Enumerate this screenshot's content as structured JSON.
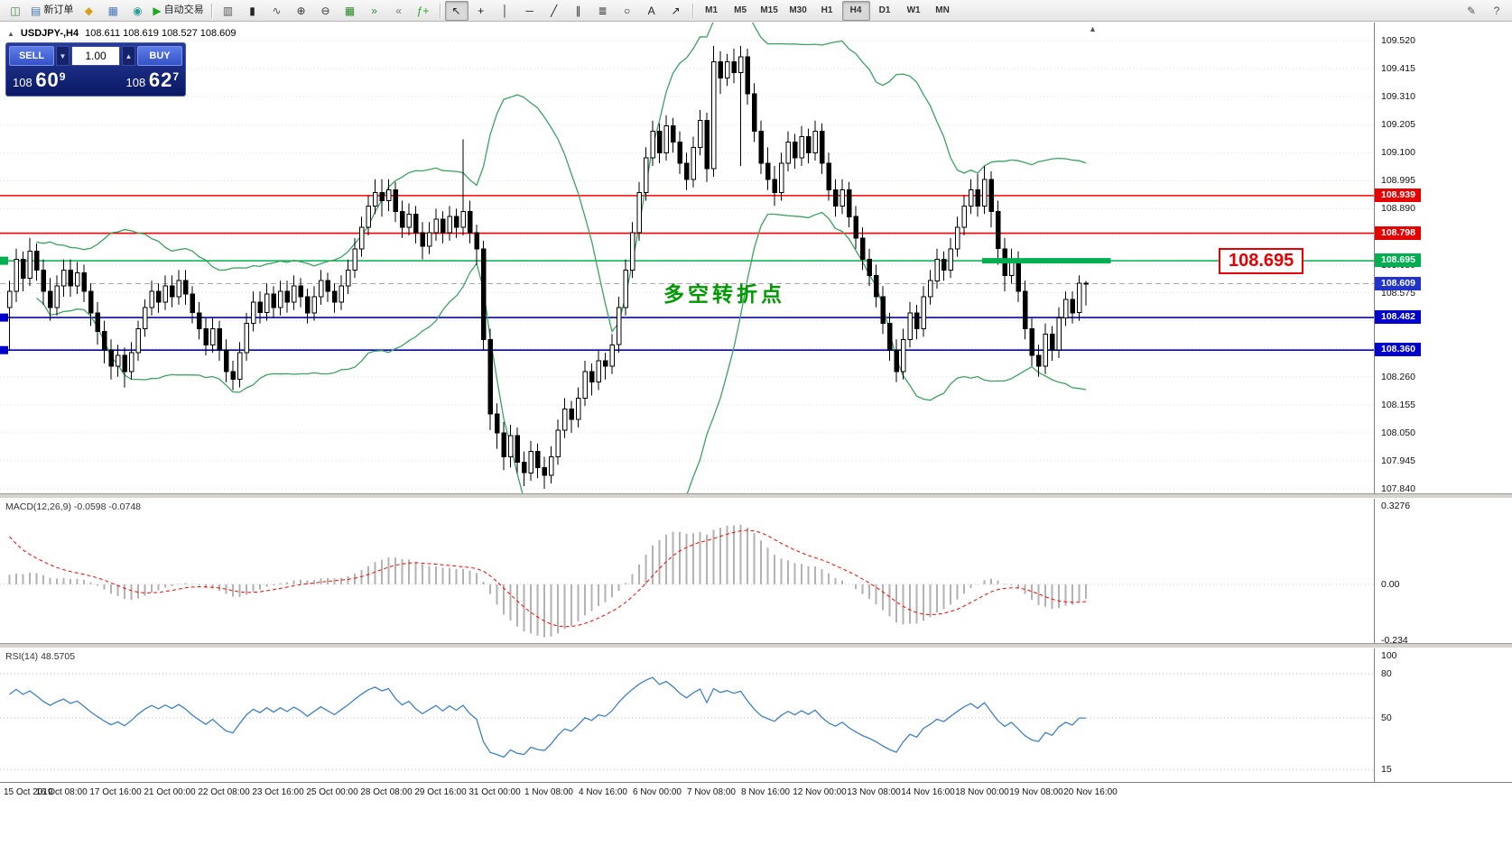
{
  "toolbar": {
    "groups": [
      [
        {
          "name": "new-chart-icon",
          "glyph": "◫",
          "color": "#3f7f3f"
        },
        {
          "name": "new-order-button",
          "icon_name": "new-order-icon",
          "glyph": "▤",
          "icon_color": "#4a7ab0",
          "label": "新订单"
        },
        {
          "name": "profiles-icon",
          "glyph": "◆",
          "color": "#d8a018"
        },
        {
          "name": "market-watch-icon",
          "glyph": "▦",
          "color": "#4a78b8"
        },
        {
          "name": "navigator-icon",
          "glyph": "◉",
          "color": "#2a9a9a"
        },
        {
          "name": "auto-trading-button",
          "icon_name": "auto-trading-icon",
          "glyph": "▶",
          "icon_color": "#1fa81f",
          "label": "自动交易"
        }
      ],
      [
        {
          "name": "bar-chart-icon",
          "glyph": "▥",
          "color": "#555555"
        },
        {
          "name": "candlestick-chart-icon",
          "glyph": "▮",
          "color": "#222222"
        },
        {
          "name": "line-chart-icon",
          "glyph": "∿",
          "color": "#555555"
        },
        {
          "name": "zoom-in-icon",
          "glyph": "⊕",
          "color": "#333333"
        },
        {
          "name": "zoom-out-icon",
          "glyph": "⊖",
          "color": "#333333"
        },
        {
          "name": "tile-windows-icon",
          "glyph": "▦",
          "color": "#2a8a2a"
        },
        {
          "name": "auto-scroll-icon",
          "glyph": "»",
          "color": "#2a8a2a"
        },
        {
          "name": "chart-shift-icon",
          "glyph": "«",
          "color": "#777777"
        },
        {
          "name": "indicators-icon",
          "glyph": "ƒ+",
          "color": "#1fa81f"
        }
      ],
      [
        {
          "name": "cursor-icon",
          "glyph": "↖",
          "color": "#222222",
          "active": true
        },
        {
          "name": "crosshair-icon",
          "glyph": "+",
          "color": "#222222"
        },
        {
          "name": "vertical-line-icon",
          "glyph": "│",
          "color": "#222222"
        },
        {
          "name": "horizontal-line-icon",
          "glyph": "─",
          "color": "#222222"
        },
        {
          "name": "trendline-icon",
          "glyph": "╱",
          "color": "#222222"
        },
        {
          "name": "channel-icon",
          "glyph": "∥",
          "color": "#222222"
        },
        {
          "name": "fibonacci-icon",
          "glyph": "≣",
          "color": "#222222"
        },
        {
          "name": "shapes-icon",
          "glyph": "○",
          "color": "#222222"
        },
        {
          "name": "text-icon",
          "glyph": "A",
          "color": "#222222"
        },
        {
          "name": "arrow-objects-icon",
          "glyph": "↗",
          "color": "#222222"
        }
      ]
    ],
    "timeframes": [
      "M1",
      "M5",
      "M15",
      "M30",
      "H1",
      "H4",
      "D1",
      "W1",
      "MN"
    ],
    "active_timeframe": "H4",
    "right_items": [
      {
        "name": "pencil-icon",
        "glyph": "✎",
        "color": "#555555"
      },
      {
        "name": "help-icon",
        "glyph": "?",
        "color": "#555555"
      }
    ]
  },
  "chart": {
    "header": {
      "collapse_icon": "▲",
      "symbol": "USDJPY-,H4",
      "ohlc": "108.611 108.619 108.527 108.609"
    },
    "trade_panel": {
      "sell_label": "SELL",
      "buy_label": "BUY",
      "volume": "1.00",
      "spinner_down": "▼",
      "spinner_up": "▲",
      "sell_price": {
        "prefix": "108 ",
        "big": "60",
        "sup": "9"
      },
      "buy_price": {
        "prefix": "108 ",
        "big": "62",
        "sup": "7"
      }
    },
    "annotation_text": "多空转折点",
    "price_flag": "108.695",
    "scroll_marker": "▲",
    "y_axis": {
      "min": 107.84,
      "max": 109.52,
      "step": 0.105
    },
    "levels": {
      "resistance": [
        108.939,
        108.798
      ],
      "pivot": 108.695,
      "support": [
        108.482,
        108.36
      ],
      "bid": 108.609
    },
    "highlight": {
      "price": 108.695,
      "from_bar": 144,
      "to_bar": 163
    },
    "left_stubs": [
      {
        "price": 108.695,
        "color": "#00b050"
      },
      {
        "price": 108.482,
        "color": "#0000cc"
      },
      {
        "price": 108.36,
        "color": "#0000cc"
      }
    ],
    "price_tags": [
      {
        "text": "108.939",
        "bg": "#e60000"
      },
      {
        "text": "108.798",
        "bg": "#e60000"
      },
      {
        "text": "108.695",
        "bg": "#00b050"
      },
      {
        "text": "108.609",
        "bg": "#2233cc"
      },
      {
        "text": "108.482",
        "bg": "#0000cc"
      },
      {
        "text": "108.360",
        "bg": "#0000cc"
      }
    ],
    "colors": {
      "bull": "#ffffff",
      "bear": "#000000",
      "wick": "#000000",
      "bollinger": "#3aa35f",
      "resistance": "#ff0000",
      "support": "#0000dd",
      "pivot": "#00b050",
      "bid_line": "#a8a8b8",
      "grid": "#e0e0e0",
      "macd_histogram": "#b2b2b2",
      "macd_signal": "#ff0000",
      "rsi_line": "#4080c8"
    }
  },
  "chart_data": {
    "type": "candlestick",
    "symbol": "USDJPY",
    "timeframe": "H4",
    "title": "USDJPY-,H4",
    "candles": [
      [
        108.52,
        108.62,
        108.36,
        108.58
      ],
      [
        108.58,
        108.74,
        108.54,
        108.7
      ],
      [
        108.7,
        108.73,
        108.58,
        108.63
      ],
      [
        108.63,
        108.78,
        108.6,
        108.73
      ],
      [
        108.73,
        108.76,
        108.62,
        108.66
      ],
      [
        108.66,
        108.7,
        108.53,
        108.58
      ],
      [
        108.58,
        108.63,
        108.47,
        108.52
      ],
      [
        108.52,
        108.64,
        108.49,
        108.6
      ],
      [
        108.6,
        108.7,
        108.56,
        108.66
      ],
      [
        108.66,
        108.7,
        108.56,
        108.6
      ],
      [
        108.6,
        108.69,
        108.57,
        108.65
      ],
      [
        108.65,
        108.68,
        108.54,
        108.58
      ],
      [
        108.58,
        108.61,
        108.45,
        108.5
      ],
      [
        108.5,
        108.54,
        108.38,
        108.43
      ],
      [
        108.43,
        108.47,
        108.31,
        108.36
      ],
      [
        108.36,
        108.4,
        108.25,
        108.3
      ],
      [
        108.3,
        108.38,
        108.26,
        108.34
      ],
      [
        108.34,
        108.37,
        108.22,
        108.28
      ],
      [
        108.28,
        108.39,
        108.25,
        108.35
      ],
      [
        108.35,
        108.47,
        108.32,
        108.44
      ],
      [
        108.44,
        108.55,
        108.41,
        108.52
      ],
      [
        108.52,
        108.62,
        108.49,
        108.58
      ],
      [
        108.58,
        108.61,
        108.5,
        108.54
      ],
      [
        108.54,
        108.64,
        108.51,
        108.6
      ],
      [
        108.6,
        108.64,
        108.52,
        108.56
      ],
      [
        108.56,
        108.66,
        108.53,
        108.62
      ],
      [
        108.62,
        108.66,
        108.53,
        108.57
      ],
      [
        108.57,
        108.6,
        108.46,
        108.5
      ],
      [
        108.5,
        108.54,
        108.4,
        108.44
      ],
      [
        108.44,
        108.48,
        108.34,
        108.38
      ],
      [
        108.38,
        108.48,
        108.35,
        108.44
      ],
      [
        108.44,
        108.47,
        108.32,
        108.36
      ],
      [
        108.36,
        108.4,
        108.24,
        108.28
      ],
      [
        108.28,
        108.32,
        108.21,
        108.25
      ],
      [
        108.25,
        108.39,
        108.22,
        108.35
      ],
      [
        108.35,
        108.5,
        108.32,
        108.46
      ],
      [
        108.46,
        108.58,
        108.43,
        108.54
      ],
      [
        108.54,
        108.58,
        108.46,
        108.5
      ],
      [
        108.5,
        108.61,
        108.47,
        108.57
      ],
      [
        108.57,
        108.6,
        108.48,
        108.52
      ],
      [
        108.52,
        108.62,
        108.49,
        108.58
      ],
      [
        108.58,
        108.62,
        108.5,
        108.54
      ],
      [
        108.54,
        108.64,
        108.51,
        108.6
      ],
      [
        108.6,
        108.63,
        108.52,
        108.56
      ],
      [
        108.56,
        108.59,
        108.46,
        108.5
      ],
      [
        108.5,
        108.6,
        108.47,
        108.56
      ],
      [
        108.56,
        108.66,
        108.53,
        108.62
      ],
      [
        108.62,
        108.65,
        108.54,
        108.58
      ],
      [
        108.58,
        108.61,
        108.5,
        108.54
      ],
      [
        108.54,
        108.64,
        108.51,
        108.6
      ],
      [
        108.6,
        108.7,
        108.57,
        108.66
      ],
      [
        108.66,
        108.78,
        108.63,
        108.74
      ],
      [
        108.74,
        108.86,
        108.71,
        108.82
      ],
      [
        108.82,
        108.94,
        108.79,
        108.9
      ],
      [
        108.9,
        109.0,
        108.87,
        108.95
      ],
      [
        108.95,
        109.0,
        108.86,
        108.92
      ],
      [
        108.92,
        109.0,
        108.88,
        108.96
      ],
      [
        108.96,
        108.99,
        108.84,
        108.88
      ],
      [
        108.88,
        108.92,
        108.78,
        108.82
      ],
      [
        108.82,
        108.91,
        108.79,
        108.87
      ],
      [
        108.87,
        108.9,
        108.76,
        108.8
      ],
      [
        108.8,
        108.84,
        108.7,
        108.75
      ],
      [
        108.75,
        108.84,
        108.72,
        108.8
      ],
      [
        108.8,
        108.89,
        108.77,
        108.85
      ],
      [
        108.85,
        108.88,
        108.76,
        108.8
      ],
      [
        108.8,
        108.9,
        108.77,
        108.86
      ],
      [
        108.86,
        108.89,
        108.78,
        108.82
      ],
      [
        108.82,
        109.15,
        108.79,
        108.88
      ],
      [
        108.88,
        108.92,
        108.76,
        108.8
      ],
      [
        108.8,
        108.83,
        108.68,
        108.74
      ],
      [
        108.74,
        108.77,
        108.36,
        108.4
      ],
      [
        108.4,
        108.44,
        108.06,
        108.12
      ],
      [
        108.12,
        108.16,
        107.99,
        108.05
      ],
      [
        108.05,
        108.09,
        107.91,
        107.96
      ],
      [
        107.96,
        108.08,
        107.92,
        108.04
      ],
      [
        108.04,
        108.07,
        107.9,
        107.94
      ],
      [
        107.94,
        107.98,
        107.85,
        107.9
      ],
      [
        107.9,
        108.02,
        107.87,
        107.98
      ],
      [
        107.98,
        108.01,
        107.88,
        107.92
      ],
      [
        107.92,
        107.96,
        107.84,
        107.89
      ],
      [
        107.89,
        108.0,
        107.86,
        107.96
      ],
      [
        107.96,
        108.1,
        107.93,
        108.06
      ],
      [
        108.06,
        108.18,
        108.03,
        108.14
      ],
      [
        108.14,
        108.17,
        108.05,
        108.1
      ],
      [
        108.1,
        108.22,
        108.07,
        108.18
      ],
      [
        108.18,
        108.32,
        108.15,
        108.28
      ],
      [
        108.28,
        108.31,
        108.19,
        108.24
      ],
      [
        108.24,
        108.36,
        108.21,
        108.32
      ],
      [
        108.32,
        108.35,
        108.25,
        108.3
      ],
      [
        108.3,
        108.42,
        108.27,
        108.38
      ],
      [
        108.38,
        108.56,
        108.35,
        108.52
      ],
      [
        108.52,
        108.7,
        108.49,
        108.66
      ],
      [
        108.66,
        108.84,
        108.63,
        108.8
      ],
      [
        108.8,
        108.99,
        108.77,
        108.95
      ],
      [
        108.95,
        109.12,
        108.92,
        109.08
      ],
      [
        109.08,
        109.22,
        109.05,
        109.18
      ],
      [
        109.18,
        109.21,
        109.06,
        109.1
      ],
      [
        109.1,
        109.24,
        109.07,
        109.2
      ],
      [
        109.2,
        109.23,
        109.1,
        109.14
      ],
      [
        109.14,
        109.18,
        109.02,
        109.06
      ],
      [
        109.06,
        109.1,
        108.96,
        109.0
      ],
      [
        109.0,
        109.16,
        108.97,
        109.12
      ],
      [
        109.12,
        109.26,
        109.09,
        109.22
      ],
      [
        109.22,
        109.25,
        108.99,
        109.04
      ],
      [
        109.04,
        109.5,
        109.01,
        109.44
      ],
      [
        109.44,
        109.48,
        109.32,
        109.38
      ],
      [
        109.38,
        109.47,
        109.35,
        109.44
      ],
      [
        109.44,
        109.49,
        109.36,
        109.4
      ],
      [
        109.4,
        109.5,
        109.05,
        109.46
      ],
      [
        109.46,
        109.49,
        109.28,
        109.32
      ],
      [
        109.32,
        109.36,
        109.14,
        109.18
      ],
      [
        109.18,
        109.22,
        109.02,
        109.06
      ],
      [
        109.06,
        109.12,
        108.96,
        109.0
      ],
      [
        109.0,
        109.05,
        108.9,
        108.95
      ],
      [
        108.95,
        109.1,
        108.92,
        109.06
      ],
      [
        109.06,
        109.18,
        109.03,
        109.14
      ],
      [
        109.14,
        109.17,
        109.04,
        109.08
      ],
      [
        109.08,
        109.2,
        109.05,
        109.16
      ],
      [
        109.16,
        109.19,
        109.06,
        109.1
      ],
      [
        109.1,
        109.22,
        109.07,
        109.18
      ],
      [
        109.18,
        109.21,
        109.02,
        109.06
      ],
      [
        109.06,
        109.1,
        108.92,
        108.96
      ],
      [
        108.96,
        109.0,
        108.86,
        108.9
      ],
      [
        108.9,
        109.0,
        108.87,
        108.96
      ],
      [
        108.96,
        108.99,
        108.82,
        108.86
      ],
      [
        108.86,
        108.9,
        108.74,
        108.78
      ],
      [
        108.78,
        108.82,
        108.66,
        108.7
      ],
      [
        108.7,
        108.74,
        108.6,
        108.64
      ],
      [
        108.64,
        108.68,
        108.52,
        108.56
      ],
      [
        108.56,
        108.6,
        108.42,
        108.46
      ],
      [
        108.46,
        108.5,
        108.32,
        108.36
      ],
      [
        108.36,
        108.4,
        108.24,
        108.28
      ],
      [
        108.28,
        108.44,
        108.25,
        108.4
      ],
      [
        108.4,
        108.54,
        108.37,
        108.5
      ],
      [
        108.5,
        108.53,
        108.4,
        108.44
      ],
      [
        108.44,
        108.6,
        108.41,
        108.56
      ],
      [
        108.56,
        108.66,
        108.53,
        108.62
      ],
      [
        108.62,
        108.74,
        108.59,
        108.7
      ],
      [
        108.7,
        108.73,
        108.62,
        108.66
      ],
      [
        108.66,
        108.78,
        108.63,
        108.74
      ],
      [
        108.74,
        108.86,
        108.71,
        108.82
      ],
      [
        108.82,
        108.94,
        108.79,
        108.9
      ],
      [
        108.9,
        109.0,
        108.87,
        108.96
      ],
      [
        108.96,
        109.02,
        108.86,
        108.9
      ],
      [
        108.9,
        109.05,
        108.87,
        109.0
      ],
      [
        109.0,
        109.03,
        108.82,
        108.88
      ],
      [
        108.88,
        108.92,
        108.68,
        108.74
      ],
      [
        108.74,
        108.78,
        108.58,
        108.64
      ],
      [
        108.64,
        108.74,
        108.61,
        108.7
      ],
      [
        108.7,
        108.73,
        108.54,
        108.58
      ],
      [
        108.58,
        108.62,
        108.4,
        108.44
      ],
      [
        108.44,
        108.48,
        108.3,
        108.34
      ],
      [
        108.34,
        108.38,
        108.26,
        108.3
      ],
      [
        108.3,
        108.46,
        108.27,
        108.42
      ],
      [
        108.42,
        108.45,
        108.32,
        108.36
      ],
      [
        108.36,
        108.52,
        108.33,
        108.48
      ],
      [
        108.48,
        108.58,
        108.45,
        108.55
      ],
      [
        108.55,
        108.58,
        108.46,
        108.5
      ],
      [
        108.5,
        108.64,
        108.47,
        108.61
      ],
      [
        108.611,
        108.619,
        108.527,
        108.609
      ]
    ],
    "time_labels": [
      "15 Oct 2019",
      "16 Oct 08:00",
      "17 Oct 16:00",
      "21 Oct 00:00",
      "22 Oct 08:00",
      "23 Oct 16:00",
      "25 Oct 00:00",
      "28 Oct 08:00",
      "29 Oct 16:00",
      "31 Oct 00:00",
      "1 Nov 08:00",
      "4 Nov 16:00",
      "6 Nov 00:00",
      "7 Nov 08:00",
      "8 Nov 16:00",
      "12 Nov 00:00",
      "13 Nov 08:00",
      "14 Nov 16:00",
      "18 Nov 00:00",
      "19 Nov 08:00",
      "20 Nov 16:00"
    ],
    "indicators": {
      "bollinger": {
        "period": 20,
        "deviation": 2
      },
      "macd": {
        "label": "MACD(12,26,9) -0.0598 -0.0748",
        "fast": 12,
        "slow": 26,
        "signal": 9,
        "current_main": -0.0598,
        "current_signal": -0.0748,
        "range": [
          -0.234,
          0.3276
        ],
        "axis": [
          {
            "t": "0.3276",
            "v": 0.3276
          },
          {
            "t": "0.00",
            "v": 0
          },
          {
            "t": "-0.234",
            "v": -0.234
          }
        ]
      },
      "rsi": {
        "label": "RSI(14) 48.5705",
        "period": 14,
        "current": 48.5705,
        "levels": [
          80,
          50,
          15
        ],
        "axis": [
          {
            "t": "100",
            "v": 100
          },
          {
            "t": "80",
            "v": 80
          },
          {
            "t": "50",
            "v": 50
          },
          {
            "t": "15",
            "v": 15
          }
        ]
      }
    }
  }
}
